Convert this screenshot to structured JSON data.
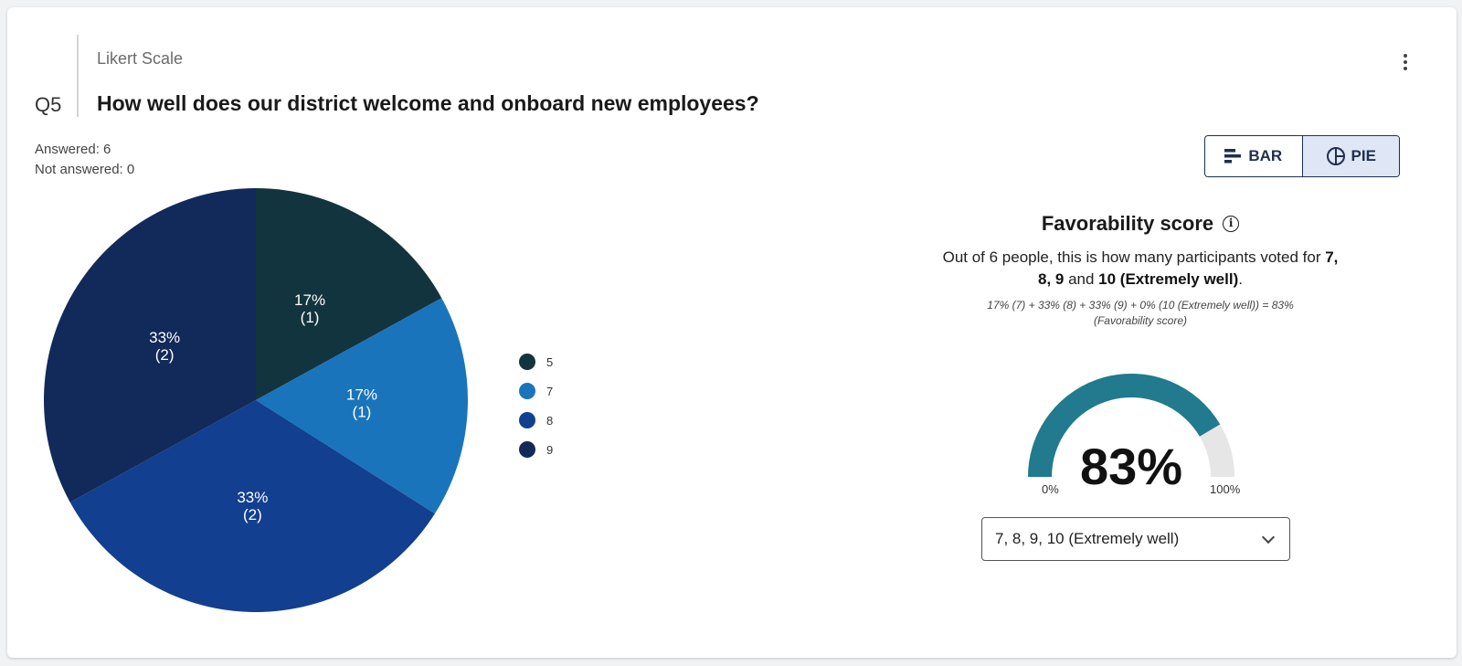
{
  "question": {
    "number": "Q5",
    "type": "Likert Scale",
    "title": "How well does our district welcome and onboard new employees?"
  },
  "stats": {
    "answered": "Answered: 6",
    "not_answered": "Not answered: 0"
  },
  "toggle": {
    "bar_label": "BAR",
    "pie_label": "PIE",
    "active": "pie"
  },
  "chart_data": {
    "type": "pie",
    "slices": [
      {
        "label": "5",
        "percent": 17,
        "count": 1,
        "percent_label": "17%",
        "count_label": "(1)",
        "color": "#12343e"
      },
      {
        "label": "7",
        "percent": 17,
        "count": 1,
        "percent_label": "17%",
        "count_label": "(1)",
        "color": "#1a74bc"
      },
      {
        "label": "8",
        "percent": 33,
        "count": 2,
        "percent_label": "33%",
        "count_label": "(2)",
        "color": "#123f8f"
      },
      {
        "label": "9",
        "percent": 33,
        "count": 2,
        "percent_label": "33%",
        "count_label": "(2)",
        "color": "#112a5a"
      }
    ],
    "legend": [
      "5",
      "7",
      "8",
      "9"
    ],
    "legend_position": "right"
  },
  "favorability": {
    "title": "Favorability score",
    "desc_prefix": "Out of 6 people, this is how many participants voted for ",
    "desc_bold1": "7, 8, 9",
    "desc_and": " and ",
    "desc_bold2": "10 (Extremely well)",
    "desc_suffix": ".",
    "formula": "17% (7) + 33% (8) + 33% (9) + 0% (10 (Extremely well)) = 83% (Favorability score)",
    "score": 83,
    "score_label": "83%",
    "min_label": "0%",
    "max_label": "100%",
    "gauge_color": "#217a8d",
    "gauge_track": "#e6e6e6"
  },
  "select": {
    "value": "7, 8, 9, 10 (Extremely well)"
  }
}
